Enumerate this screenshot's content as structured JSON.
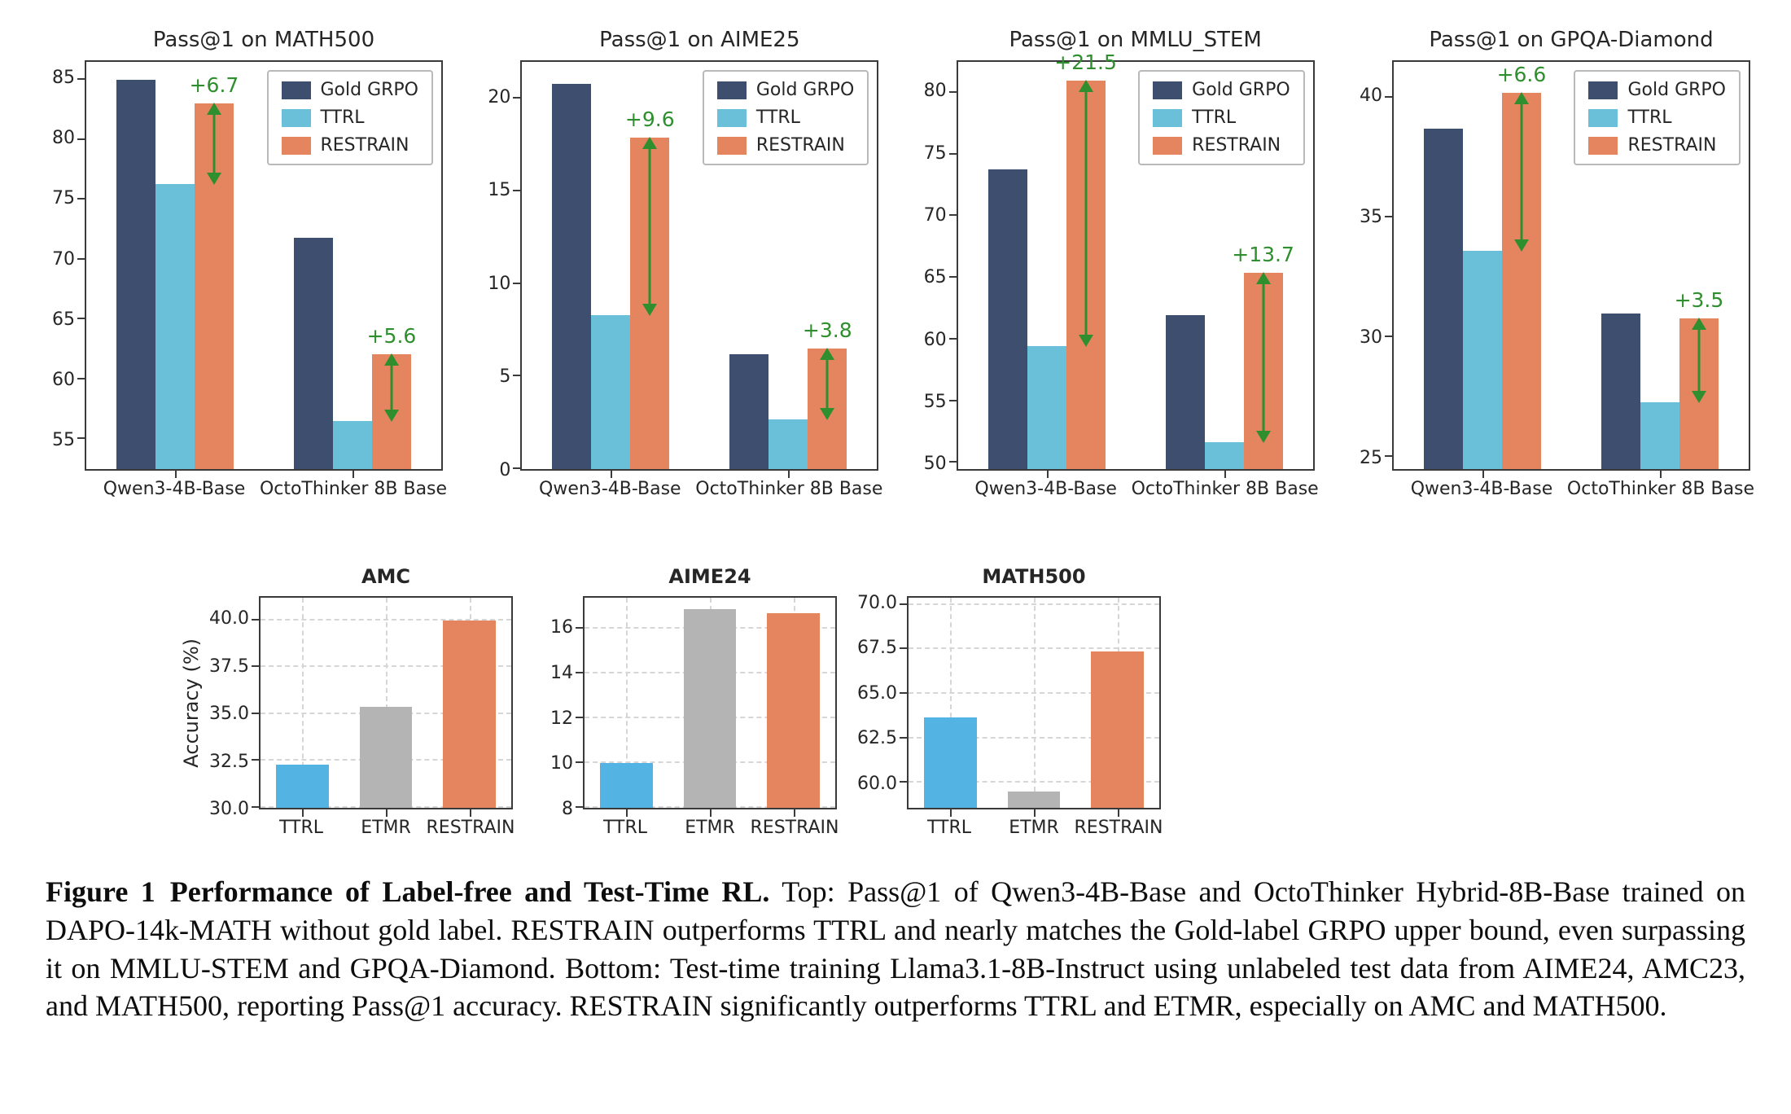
{
  "colors": {
    "gold_grpo": "#3d4e6e",
    "ttrl_top": "#69c0d8",
    "restrain": "#e58560",
    "ttrl_bottom": "#53b4e4",
    "etmr": "#b4b4b4",
    "annotation_green": "#2f8f2f"
  },
  "chart_data": [
    {
      "id": "pass1-math500",
      "panel": "top",
      "type": "bar",
      "title": "Pass@1 on MATH500",
      "categories": [
        "Qwen3-4B-Base",
        "OctoThinker 8B Base"
      ],
      "series": [
        {
          "name": "Gold GRPO",
          "color_key": "gold_grpo",
          "values": [
            85.0,
            71.8
          ]
        },
        {
          "name": "TTRL",
          "color_key": "ttrl_top",
          "values": [
            76.3,
            56.5
          ]
        },
        {
          "name": "RESTRAIN",
          "color_key": "restrain",
          "values": [
            83.0,
            62.1
          ]
        }
      ],
      "ylim": [
        52.5,
        86.5
      ],
      "yticks": [
        55,
        60,
        65,
        70,
        75,
        80,
        85
      ],
      "ytick_labels": [
        "55",
        "60",
        "65",
        "70",
        "75",
        "80",
        "85"
      ],
      "legend": [
        "Gold GRPO",
        "TTRL",
        "RESTRAIN"
      ],
      "grid": false,
      "annotations": [
        {
          "category": 0,
          "label": "+6.7",
          "from": 76.3,
          "to": 83.0
        },
        {
          "category": 1,
          "label": "+5.6",
          "from": 56.5,
          "to": 62.1
        }
      ]
    },
    {
      "id": "pass1-aime25",
      "panel": "top",
      "type": "bar",
      "title": "Pass@1 on AIME25",
      "categories": [
        "Qwen3-4B-Base",
        "OctoThinker 8B Base"
      ],
      "series": [
        {
          "name": "Gold GRPO",
          "color_key": "gold_grpo",
          "values": [
            20.8,
            6.2
          ]
        },
        {
          "name": "TTRL",
          "color_key": "ttrl_top",
          "values": [
            8.3,
            2.7
          ]
        },
        {
          "name": "RESTRAIN",
          "color_key": "restrain",
          "values": [
            17.9,
            6.5
          ]
        }
      ],
      "ylim": [
        0,
        22
      ],
      "yticks": [
        0,
        5,
        10,
        15,
        20
      ],
      "ytick_labels": [
        "0",
        "5",
        "10",
        "15",
        "20"
      ],
      "legend": [
        "Gold GRPO",
        "TTRL",
        "RESTRAIN"
      ],
      "grid": false,
      "annotations": [
        {
          "category": 0,
          "label": "+9.6",
          "from": 8.3,
          "to": 17.9
        },
        {
          "category": 1,
          "label": "+3.8",
          "from": 2.7,
          "to": 6.5
        }
      ]
    },
    {
      "id": "pass1-mmlu-stem",
      "panel": "top",
      "type": "bar",
      "title": "Pass@1 on MMLU_STEM",
      "categories": [
        "Qwen3-4B-Base",
        "OctoThinker 8B Base"
      ],
      "series": [
        {
          "name": "Gold GRPO",
          "color_key": "gold_grpo",
          "values": [
            73.8,
            62.0
          ]
        },
        {
          "name": "TTRL",
          "color_key": "ttrl_top",
          "values": [
            59.5,
            51.7
          ]
        },
        {
          "name": "RESTRAIN",
          "color_key": "restrain",
          "values": [
            81.0,
            65.4
          ]
        }
      ],
      "ylim": [
        49.5,
        82.5
      ],
      "yticks": [
        50,
        55,
        60,
        65,
        70,
        75,
        80
      ],
      "ytick_labels": [
        "50",
        "55",
        "60",
        "65",
        "70",
        "75",
        "80"
      ],
      "legend": [
        "Gold GRPO",
        "TTRL",
        "RESTRAIN"
      ],
      "grid": false,
      "annotations": [
        {
          "category": 0,
          "label": "+21.5",
          "from": 59.5,
          "to": 81.0
        },
        {
          "category": 1,
          "label": "+13.7",
          "from": 51.7,
          "to": 65.4
        }
      ]
    },
    {
      "id": "pass1-gpqa-diamond",
      "panel": "top",
      "type": "bar",
      "title": "Pass@1 on GPQA-Diamond",
      "categories": [
        "Qwen3-4B-Base",
        "OctoThinker 8B Base"
      ],
      "series": [
        {
          "name": "Gold GRPO",
          "color_key": "gold_grpo",
          "values": [
            38.7,
            31.0
          ]
        },
        {
          "name": "TTRL",
          "color_key": "ttrl_top",
          "values": [
            33.6,
            27.3
          ]
        },
        {
          "name": "RESTRAIN",
          "color_key": "restrain",
          "values": [
            40.2,
            30.8
          ]
        }
      ],
      "ylim": [
        24.5,
        41.5
      ],
      "yticks": [
        25,
        30,
        35,
        40
      ],
      "ytick_labels": [
        "25",
        "30",
        "35",
        "40"
      ],
      "legend": [
        "Gold GRPO",
        "TTRL",
        "RESTRAIN"
      ],
      "grid": false,
      "annotations": [
        {
          "category": 0,
          "label": "+6.6",
          "from": 33.6,
          "to": 40.2
        },
        {
          "category": 1,
          "label": "+3.5",
          "from": 27.3,
          "to": 30.8
        }
      ]
    },
    {
      "id": "testtime-amc",
      "panel": "bottom",
      "type": "bar",
      "title": "AMC",
      "ylabel": "Accuracy (%)",
      "categories": [
        "TTRL",
        "ETMR",
        "RESTRAIN"
      ],
      "values": [
        32.3,
        35.4,
        40.0
      ],
      "color_keys": [
        "ttrl_bottom",
        "etmr",
        "restrain"
      ],
      "ylim": [
        30.0,
        41.2
      ],
      "yticks": [
        30.0,
        32.5,
        35.0,
        37.5,
        40.0
      ],
      "ytick_labels": [
        "30.0",
        "32.5",
        "35.0",
        "37.5",
        "40.0"
      ],
      "grid": true
    },
    {
      "id": "testtime-aime24",
      "panel": "bottom",
      "type": "bar",
      "title": "AIME24",
      "categories": [
        "TTRL",
        "ETMR",
        "RESTRAIN"
      ],
      "values": [
        10.0,
        16.9,
        16.7
      ],
      "color_keys": [
        "ttrl_bottom",
        "etmr",
        "restrain"
      ],
      "ylim": [
        8.0,
        17.4
      ],
      "yticks": [
        8,
        10,
        12,
        14,
        16
      ],
      "ytick_labels": [
        "8",
        "10",
        "12",
        "14",
        "16"
      ],
      "grid": true
    },
    {
      "id": "testtime-math500",
      "panel": "bottom",
      "type": "bar",
      "title": "MATH500",
      "categories": [
        "TTRL",
        "ETMR",
        "RESTRAIN"
      ],
      "values": [
        63.7,
        59.5,
        67.4
      ],
      "color_keys": [
        "ttrl_bottom",
        "etmr",
        "restrain"
      ],
      "ylim": [
        58.6,
        70.4
      ],
      "yticks": [
        60.0,
        62.5,
        65.0,
        67.5,
        70.0
      ],
      "ytick_labels": [
        "60.0",
        "62.5",
        "65.0",
        "67.5",
        "70.0"
      ],
      "grid": true
    }
  ],
  "caption": {
    "figure_label": "Figure 1",
    "bold_title": "Performance of Label-free and Test-Time RL.",
    "body": "Top: Pass@1 of Qwen3-4B-Base and OctoThinker Hybrid-8B-Base trained on DAPO-14k-MATH without gold label. RESTRAIN outperforms TTRL and nearly matches the Gold-label GRPO upper bound, even surpassing it on MMLU-STEM and GPQA-Diamond. Bottom: Test-time training Llama3.1-8B-Instruct using unlabeled test data from AIME24, AMC23, and MATH500, reporting Pass@1 accuracy. RESTRAIN significantly outperforms TTRL and ETMR, especially on AMC and MATH500."
  }
}
